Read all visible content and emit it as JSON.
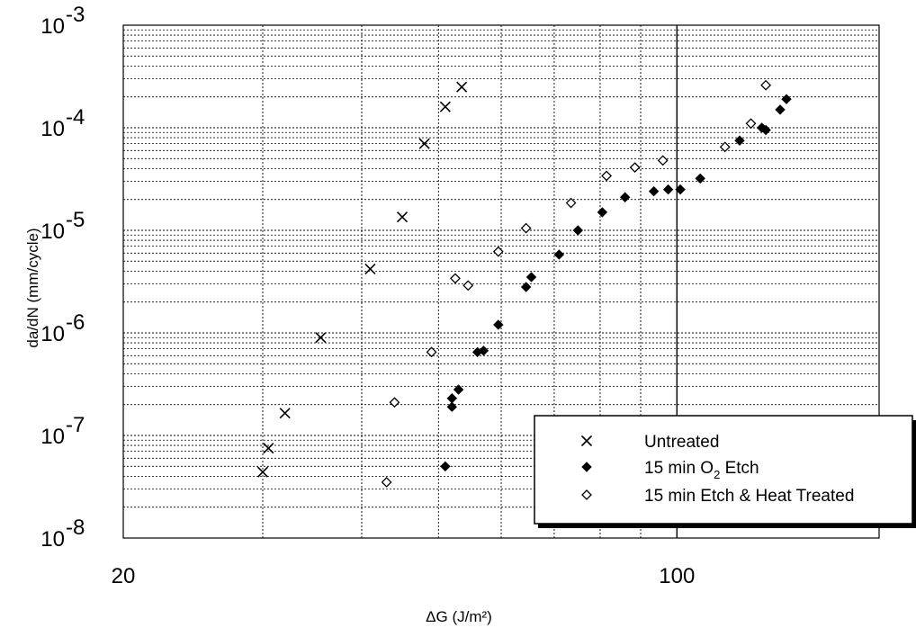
{
  "chart_data": {
    "type": "scatter",
    "xlabel": "ΔG (J/m²)",
    "ylabel": "da/dN (mm/cycle)",
    "xscale": "log",
    "yscale": "log",
    "xlim": [
      20,
      180
    ],
    "ylim": [
      1e-08,
      0.001
    ],
    "grid": true,
    "legend_position": "bottom-right",
    "x_ticks": [
      20,
      100
    ],
    "y_ticks": [
      {
        "base": "10",
        "exp": "-8",
        "value": 1e-08
      },
      {
        "base": "10",
        "exp": "-7",
        "value": 1e-07
      },
      {
        "base": "10",
        "exp": "-6",
        "value": 1e-06
      },
      {
        "base": "10",
        "exp": "-5",
        "value": 1e-05
      },
      {
        "base": "10",
        "exp": "-4",
        "value": 0.0001
      },
      {
        "base": "10",
        "exp": "-3",
        "value": 0.001
      }
    ],
    "series": [
      {
        "name": "Untreated",
        "marker": "x",
        "points": [
          [
            30.0,
            4.4e-08
          ],
          [
            30.5,
            7.5e-08
          ],
          [
            32.0,
            1.65e-07
          ],
          [
            35.5,
            9e-07
          ],
          [
            41.0,
            4.2e-06
          ],
          [
            45.0,
            1.35e-05
          ],
          [
            48.0,
            7e-05
          ],
          [
            51.0,
            0.00016
          ],
          [
            53.5,
            0.00025
          ]
        ]
      },
      {
        "name": "15 min O₂ Etch",
        "marker": "filled-diamond",
        "points": [
          [
            51.0,
            5e-08
          ],
          [
            52.0,
            1.9e-07
          ],
          [
            52.0,
            2.3e-07
          ],
          [
            53.0,
            2.8e-07
          ],
          [
            56.0,
            6.5e-07
          ],
          [
            57.0,
            6.7e-07
          ],
          [
            59.5,
            1.2e-06
          ],
          [
            64.5,
            2.8e-06
          ],
          [
            65.5,
            3.5e-06
          ],
          [
            71.0,
            5.8e-06
          ],
          [
            75.0,
            1e-05
          ],
          [
            80.5,
            1.5e-05
          ],
          [
            86.0,
            2.1e-05
          ],
          [
            93.5,
            2.4e-05
          ],
          [
            97.5,
            2.5e-05
          ],
          [
            101.0,
            2.5e-05
          ],
          [
            107.0,
            3.2e-05
          ],
          [
            120.0,
            7.5e-05
          ],
          [
            128.0,
            0.0001
          ],
          [
            129.5,
            9.5e-05
          ],
          [
            135.0,
            0.00015
          ],
          [
            137.5,
            0.00019
          ]
        ]
      },
      {
        "name": "15 min Etch & Heat Treated",
        "marker": "open-diamond",
        "points": [
          [
            43.0,
            3.5e-08
          ],
          [
            44.0,
            2.1e-07
          ],
          [
            49.0,
            6.5e-07
          ],
          [
            52.5,
            3.4e-06
          ],
          [
            54.5,
            2.9e-06
          ],
          [
            59.5,
            6.2e-06
          ],
          [
            64.5,
            1.05e-05
          ],
          [
            73.5,
            1.85e-05
          ],
          [
            81.5,
            3.4e-05
          ],
          [
            88.5,
            4.1e-05
          ],
          [
            96.0,
            4.8e-05
          ],
          [
            115.0,
            6.5e-05
          ],
          [
            124.0,
            0.00011
          ],
          [
            129.5,
            0.00026
          ]
        ]
      }
    ]
  }
}
